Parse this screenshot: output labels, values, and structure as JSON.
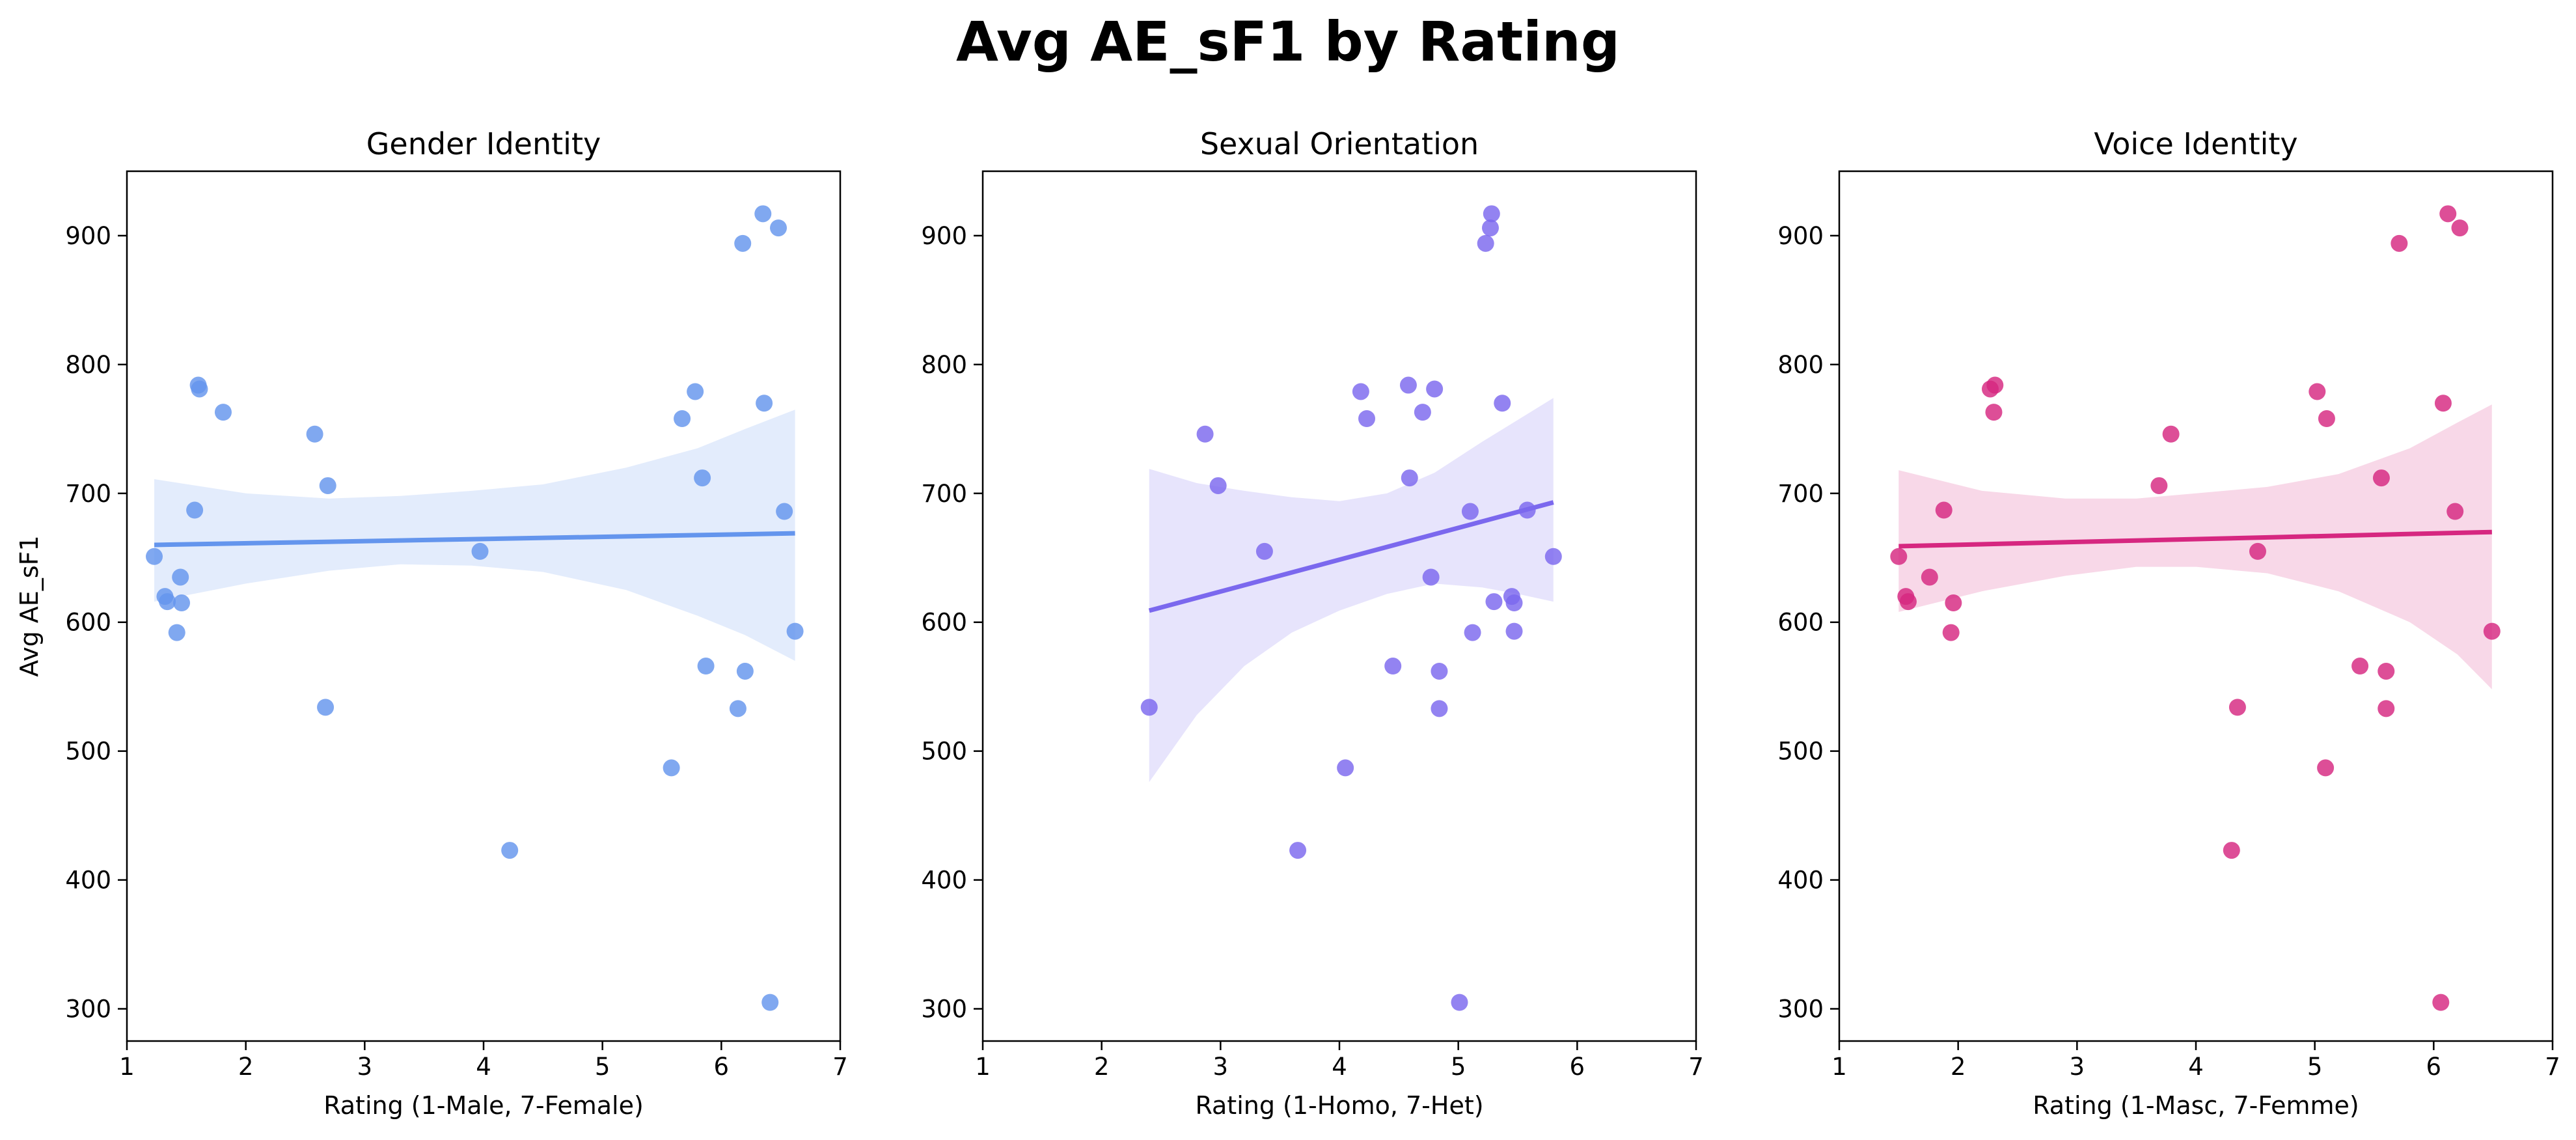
{
  "suptitle": "Avg AE_sF1 by Rating",
  "chart_data": [
    {
      "type": "scatter",
      "title": "Gender Identity",
      "xlabel": "Rating (1-Male, 7-Female)",
      "ylabel": "Avg AE_sF1",
      "xlim": [
        1,
        7
      ],
      "ylim": [
        275,
        950
      ],
      "xticks": [
        1,
        2,
        3,
        4,
        5,
        6,
        7
      ],
      "yticks": [
        300,
        400,
        500,
        600,
        700,
        800,
        900
      ],
      "color": "#6495ED",
      "grid": false,
      "points": [
        {
          "x": 1.23,
          "y": 651
        },
        {
          "x": 1.32,
          "y": 620
        },
        {
          "x": 1.34,
          "y": 616
        },
        {
          "x": 1.42,
          "y": 592
        },
        {
          "x": 1.45,
          "y": 635
        },
        {
          "x": 1.46,
          "y": 615
        },
        {
          "x": 1.57,
          "y": 687
        },
        {
          "x": 1.6,
          "y": 784
        },
        {
          "x": 1.61,
          "y": 781
        },
        {
          "x": 1.81,
          "y": 763
        },
        {
          "x": 2.58,
          "y": 746
        },
        {
          "x": 2.67,
          "y": 534
        },
        {
          "x": 2.69,
          "y": 706
        },
        {
          "x": 3.97,
          "y": 655
        },
        {
          "x": 4.22,
          "y": 423
        },
        {
          "x": 5.58,
          "y": 487
        },
        {
          "x": 5.67,
          "y": 758
        },
        {
          "x": 5.78,
          "y": 779
        },
        {
          "x": 5.84,
          "y": 712
        },
        {
          "x": 5.87,
          "y": 566
        },
        {
          "x": 6.14,
          "y": 533
        },
        {
          "x": 6.18,
          "y": 894
        },
        {
          "x": 6.2,
          "y": 562
        },
        {
          "x": 6.35,
          "y": 917
        },
        {
          "x": 6.36,
          "y": 770
        },
        {
          "x": 6.41,
          "y": 305
        },
        {
          "x": 6.48,
          "y": 906
        },
        {
          "x": 6.53,
          "y": 686
        },
        {
          "x": 6.62,
          "y": 593
        }
      ],
      "regression": {
        "x": [
          1.23,
          6.62
        ],
        "y": [
          660,
          669
        ]
      },
      "ci_band": {
        "x": [
          1.23,
          2.0,
          2.7,
          3.3,
          3.9,
          4.5,
          5.2,
          5.8,
          6.2,
          6.62
        ],
        "lower": [
          616,
          630,
          640,
          645,
          644,
          639,
          625,
          605,
          590,
          570
        ],
        "upper": [
          711,
          700,
          696,
          698,
          702,
          707,
          720,
          735,
          750,
          765
        ]
      }
    },
    {
      "type": "scatter",
      "title": "Sexual Orientation",
      "xlabel": "Rating (1-Homo, 7-Het)",
      "ylabel": "",
      "xlim": [
        1,
        7
      ],
      "ylim": [
        275,
        950
      ],
      "xticks": [
        1,
        2,
        3,
        4,
        5,
        6,
        7
      ],
      "yticks": [
        300,
        400,
        500,
        600,
        700,
        800,
        900
      ],
      "color": "#7B68EE",
      "grid": false,
      "points": [
        {
          "x": 2.4,
          "y": 534
        },
        {
          "x": 2.87,
          "y": 746
        },
        {
          "x": 2.98,
          "y": 706
        },
        {
          "x": 3.37,
          "y": 655
        },
        {
          "x": 3.65,
          "y": 423
        },
        {
          "x": 4.05,
          "y": 487
        },
        {
          "x": 4.18,
          "y": 779
        },
        {
          "x": 4.23,
          "y": 758
        },
        {
          "x": 4.45,
          "y": 566
        },
        {
          "x": 4.58,
          "y": 784
        },
        {
          "x": 4.59,
          "y": 712
        },
        {
          "x": 4.7,
          "y": 763
        },
        {
          "x": 4.77,
          "y": 635
        },
        {
          "x": 4.8,
          "y": 781
        },
        {
          "x": 4.84,
          "y": 562
        },
        {
          "x": 4.84,
          "y": 533
        },
        {
          "x": 5.01,
          "y": 305
        },
        {
          "x": 5.1,
          "y": 686
        },
        {
          "x": 5.12,
          "y": 592
        },
        {
          "x": 5.23,
          "y": 894
        },
        {
          "x": 5.27,
          "y": 906
        },
        {
          "x": 5.28,
          "y": 917
        },
        {
          "x": 5.3,
          "y": 616
        },
        {
          "x": 5.37,
          "y": 770
        },
        {
          "x": 5.45,
          "y": 620
        },
        {
          "x": 5.47,
          "y": 615
        },
        {
          "x": 5.47,
          "y": 593
        },
        {
          "x": 5.58,
          "y": 687
        },
        {
          "x": 5.8,
          "y": 651
        }
      ],
      "regression": {
        "x": [
          2.4,
          5.8
        ],
        "y": [
          609,
          693
        ]
      },
      "ci_band": {
        "x": [
          2.4,
          2.8,
          3.2,
          3.6,
          4.0,
          4.4,
          4.8,
          5.2,
          5.5,
          5.8
        ],
        "lower": [
          476,
          528,
          566,
          592,
          609,
          622,
          630,
          627,
          622,
          616
        ],
        "upper": [
          719,
          708,
          702,
          697,
          694,
          700,
          716,
          740,
          757,
          774
        ]
      }
    },
    {
      "type": "scatter",
      "title": "Voice Identity",
      "xlabel": "Rating (1-Masc, 7-Femme)",
      "ylabel": "",
      "xlim": [
        1,
        7
      ],
      "ylim": [
        275,
        950
      ],
      "xticks": [
        1,
        2,
        3,
        4,
        5,
        6,
        7
      ],
      "yticks": [
        300,
        400,
        500,
        600,
        700,
        800,
        900
      ],
      "color": "#D62780",
      "grid": false,
      "points": [
        {
          "x": 1.5,
          "y": 651
        },
        {
          "x": 1.56,
          "y": 620
        },
        {
          "x": 1.58,
          "y": 616
        },
        {
          "x": 1.76,
          "y": 635
        },
        {
          "x": 1.88,
          "y": 687
        },
        {
          "x": 1.94,
          "y": 592
        },
        {
          "x": 1.96,
          "y": 615
        },
        {
          "x": 2.27,
          "y": 781
        },
        {
          "x": 2.31,
          "y": 784
        },
        {
          "x": 2.3,
          "y": 763
        },
        {
          "x": 3.69,
          "y": 706
        },
        {
          "x": 3.79,
          "y": 746
        },
        {
          "x": 4.3,
          "y": 423
        },
        {
          "x": 4.35,
          "y": 534
        },
        {
          "x": 4.52,
          "y": 655
        },
        {
          "x": 5.02,
          "y": 779
        },
        {
          "x": 5.09,
          "y": 487
        },
        {
          "x": 5.1,
          "y": 758
        },
        {
          "x": 5.38,
          "y": 566
        },
        {
          "x": 5.56,
          "y": 712
        },
        {
          "x": 5.6,
          "y": 562
        },
        {
          "x": 5.6,
          "y": 533
        },
        {
          "x": 5.71,
          "y": 894
        },
        {
          "x": 6.06,
          "y": 305
        },
        {
          "x": 6.08,
          "y": 770
        },
        {
          "x": 6.12,
          "y": 917
        },
        {
          "x": 6.18,
          "y": 686
        },
        {
          "x": 6.22,
          "y": 906
        },
        {
          "x": 6.49,
          "y": 593
        }
      ],
      "regression": {
        "x": [
          1.5,
          6.49
        ],
        "y": [
          659,
          670
        ]
      },
      "ci_band": {
        "x": [
          1.5,
          2.2,
          2.9,
          3.5,
          4.0,
          4.6,
          5.2,
          5.8,
          6.2,
          6.49
        ],
        "lower": [
          608,
          624,
          636,
          643,
          643,
          638,
          624,
          600,
          575,
          548
        ],
        "upper": [
          718,
          702,
          696,
          696,
          700,
          705,
          715,
          735,
          755,
          769
        ]
      }
    }
  ]
}
